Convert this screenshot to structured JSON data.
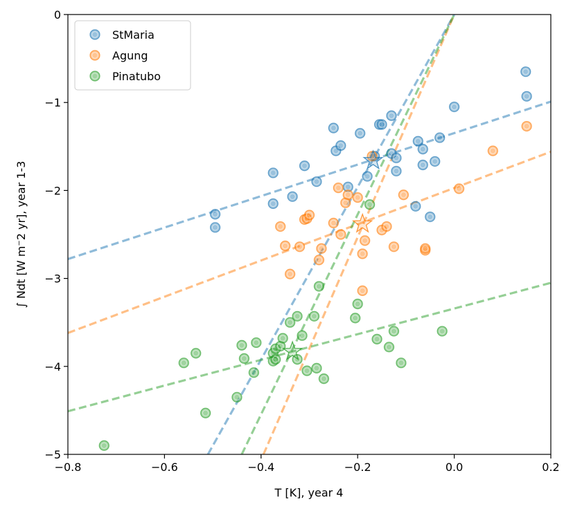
{
  "chart_data": {
    "type": "scatter",
    "xlabel": "T [K], year 4",
    "ylabel": "∫ Ndt [W m⁻2 yr], year 1-3",
    "xlim": [
      -0.8,
      0.2
    ],
    "ylim": [
      -5,
      0
    ],
    "xticks": [
      -0.8,
      -0.6,
      -0.4,
      -0.2,
      0.0,
      0.2
    ],
    "xtick_labels": [
      "−0.8",
      "−0.6",
      "−0.4",
      "−0.2",
      "0.0",
      "0.2"
    ],
    "yticks": [
      -5,
      -4,
      -3,
      -2,
      -1,
      0
    ],
    "ytick_labels": [
      "−5",
      "−4",
      "−3",
      "−2",
      "−1",
      "0"
    ],
    "legend_position": "top-left",
    "series": [
      {
        "name": "StMaria",
        "color": "#1f77b4",
        "points": [
          [
            -0.495,
            -2.27
          ],
          [
            -0.495,
            -2.42
          ],
          [
            -0.375,
            -1.8
          ],
          [
            -0.375,
            -2.15
          ],
          [
            -0.335,
            -2.07
          ],
          [
            -0.31,
            -1.72
          ],
          [
            -0.285,
            -1.9
          ],
          [
            -0.25,
            -1.29
          ],
          [
            -0.245,
            -1.55
          ],
          [
            -0.235,
            -1.49
          ],
          [
            -0.22,
            -1.96
          ],
          [
            -0.195,
            -1.35
          ],
          [
            -0.18,
            -1.84
          ],
          [
            -0.165,
            -1.61
          ],
          [
            -0.155,
            -1.25
          ],
          [
            -0.15,
            -1.25
          ],
          [
            -0.13,
            -1.15
          ],
          [
            -0.13,
            -1.58
          ],
          [
            -0.12,
            -1.63
          ],
          [
            -0.12,
            -1.78
          ],
          [
            -0.08,
            -2.18
          ],
          [
            -0.075,
            -1.44
          ],
          [
            -0.065,
            -1.53
          ],
          [
            -0.065,
            -1.71
          ],
          [
            -0.05,
            -2.3
          ],
          [
            -0.04,
            -1.67
          ],
          [
            -0.03,
            -1.4
          ],
          [
            0.0,
            -1.05
          ],
          [
            0.148,
            -0.65
          ],
          [
            0.15,
            -0.93
          ]
        ],
        "fit_lines": [
          {
            "x": [
              -0.8,
              0.2
            ],
            "y": [
              -2.78,
              -0.99
            ]
          },
          {
            "x": [
              -0.51,
              0.0
            ],
            "y": [
              -5.0,
              0.0
            ]
          }
        ],
        "star": [
          -0.168,
          -1.66
        ]
      },
      {
        "name": "Agung",
        "color": "#ff7f0e",
        "points": [
          [
            -0.36,
            -2.41
          ],
          [
            -0.35,
            -2.63
          ],
          [
            -0.34,
            -2.95
          ],
          [
            -0.32,
            -2.64
          ],
          [
            -0.31,
            -2.33
          ],
          [
            -0.305,
            -2.32
          ],
          [
            -0.3,
            -2.28
          ],
          [
            -0.28,
            -2.79
          ],
          [
            -0.275,
            -2.66
          ],
          [
            -0.25,
            -2.37
          ],
          [
            -0.24,
            -1.97
          ],
          [
            -0.235,
            -2.5
          ],
          [
            -0.225,
            -2.14
          ],
          [
            -0.22,
            -2.05
          ],
          [
            -0.2,
            -2.08
          ],
          [
            -0.19,
            -2.72
          ],
          [
            -0.19,
            -3.14
          ],
          [
            -0.185,
            -2.57
          ],
          [
            -0.17,
            -1.61
          ],
          [
            -0.15,
            -2.45
          ],
          [
            -0.14,
            -2.41
          ],
          [
            -0.125,
            -2.64
          ],
          [
            -0.105,
            -2.05
          ],
          [
            -0.06,
            -2.68
          ],
          [
            -0.06,
            -2.66
          ],
          [
            0.01,
            -1.98
          ],
          [
            0.08,
            -1.55
          ],
          [
            0.15,
            -1.27
          ]
        ],
        "fit_lines": [
          {
            "x": [
              -0.8,
              0.2
            ],
            "y": [
              -3.62,
              -1.56
            ]
          },
          {
            "x": [
              -0.395,
              0.0
            ],
            "y": [
              -5.0,
              0.0
            ]
          }
        ],
        "star": [
          -0.19,
          -2.38
        ]
      },
      {
        "name": "Pinatubo",
        "color": "#2ca02c",
        "points": [
          [
            -0.725,
            -4.9
          ],
          [
            -0.56,
            -3.96
          ],
          [
            -0.535,
            -3.85
          ],
          [
            -0.515,
            -4.53
          ],
          [
            -0.45,
            -4.35
          ],
          [
            -0.44,
            -3.76
          ],
          [
            -0.435,
            -3.91
          ],
          [
            -0.415,
            -4.07
          ],
          [
            -0.41,
            -3.73
          ],
          [
            -0.375,
            -3.85
          ],
          [
            -0.375,
            -3.94
          ],
          [
            -0.37,
            -3.8
          ],
          [
            -0.37,
            -3.92
          ],
          [
            -0.36,
            -3.77
          ],
          [
            -0.355,
            -3.68
          ],
          [
            -0.34,
            -3.5
          ],
          [
            -0.325,
            -3.43
          ],
          [
            -0.325,
            -3.92
          ],
          [
            -0.315,
            -3.65
          ],
          [
            -0.305,
            -4.05
          ],
          [
            -0.29,
            -3.43
          ],
          [
            -0.285,
            -4.02
          ],
          [
            -0.28,
            -3.09
          ],
          [
            -0.27,
            -4.14
          ],
          [
            -0.205,
            -3.45
          ],
          [
            -0.2,
            -3.29
          ],
          [
            -0.175,
            -2.16
          ],
          [
            -0.16,
            -3.69
          ],
          [
            -0.135,
            -3.78
          ],
          [
            -0.125,
            -3.6
          ],
          [
            -0.11,
            -3.96
          ],
          [
            -0.025,
            -3.6
          ]
        ],
        "fit_lines": [
          {
            "x": [
              -0.8,
              0.2
            ],
            "y": [
              -4.51,
              -3.05
            ]
          },
          {
            "x": [
              -0.44,
              0.0
            ],
            "y": [
              -5.0,
              0.0
            ]
          }
        ],
        "star": [
          -0.335,
          -3.83
        ]
      }
    ]
  }
}
